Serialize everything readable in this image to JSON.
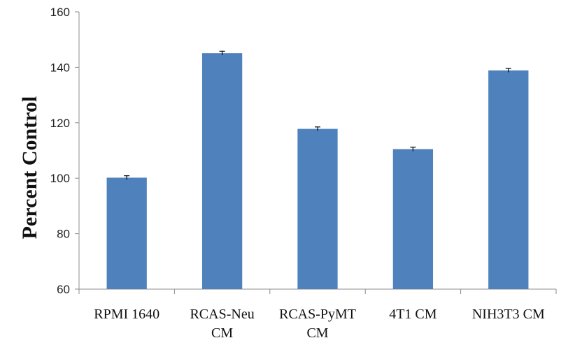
{
  "chart_data": {
    "type": "bar",
    "title": "",
    "xlabel": "",
    "ylabel": "Percent Control",
    "ylim": [
      60,
      160
    ],
    "yticks": [
      60,
      80,
      100,
      120,
      140,
      160
    ],
    "categories": [
      [
        "RPMI 1640"
      ],
      [
        "RCAS-Neu",
        "CM"
      ],
      [
        "RCAS-PyMT",
        "CM"
      ],
      [
        "4T1 CM"
      ],
      [
        "NIH3T3 CM"
      ]
    ],
    "series": [
      {
        "values": [
          100.2,
          145.1,
          117.8,
          110.5,
          138.9
        ],
        "error": [
          0.7,
          0.7,
          0.7,
          0.7,
          0.7
        ],
        "color": "#4f81bd"
      }
    ],
    "grid": false,
    "legend": "none"
  }
}
